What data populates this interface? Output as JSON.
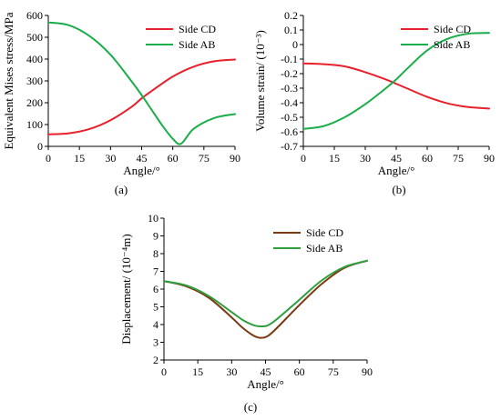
{
  "chart_data": [
    {
      "type": "line",
      "caption": "(a)",
      "xlabel": "Angle/°",
      "ylabel": "Equivalent Mises stress/MPa",
      "xlim": [
        0,
        90
      ],
      "ylim": [
        0,
        600
      ],
      "xticks": [
        0,
        15,
        30,
        45,
        60,
        75,
        90
      ],
      "yticks": [
        0,
        100,
        200,
        300,
        400,
        500,
        600
      ],
      "legend_position": "top-right",
      "series": [
        {
          "name": "Side CD",
          "color": "#e8202a",
          "x": [
            0,
            10,
            20,
            30,
            40,
            45,
            50,
            60,
            70,
            80,
            90
          ],
          "y": [
            55,
            60,
            80,
            120,
            180,
            220,
            255,
            320,
            365,
            390,
            398
          ]
        },
        {
          "name": "Side AB",
          "color": "#1aae4a",
          "x": [
            0,
            10,
            20,
            30,
            40,
            45,
            50,
            55,
            60,
            64,
            70,
            80,
            90
          ],
          "y": [
            568,
            555,
            505,
            420,
            300,
            235,
            165,
            95,
            35,
            12,
            80,
            130,
            148
          ]
        }
      ]
    },
    {
      "type": "line",
      "caption": "(b)",
      "xlabel": "Angle/°",
      "ylabel": "Volume strain/ (10⁻³)",
      "xlim": [
        0,
        90
      ],
      "ylim": [
        -0.7,
        0.2
      ],
      "xticks": [
        0,
        15,
        30,
        45,
        60,
        75,
        90
      ],
      "yticks": [
        -0.7,
        -0.6,
        -0.5,
        -0.4,
        -0.3,
        -0.2,
        -0.1,
        0,
        0.1,
        0.2
      ],
      "yticklabels": [
        "-0.7",
        "-0.6",
        "-0.5",
        "-0.4",
        "-0.3",
        "-0.2",
        "-0.1",
        "0",
        "0.1",
        "0.2"
      ],
      "legend_position": "top-right",
      "series": [
        {
          "name": "Side CD",
          "color": "#e8202a",
          "x": [
            0,
            10,
            20,
            30,
            40,
            45,
            50,
            60,
            70,
            80,
            90
          ],
          "y": [
            -0.13,
            -0.135,
            -0.15,
            -0.19,
            -0.24,
            -0.27,
            -0.3,
            -0.36,
            -0.405,
            -0.43,
            -0.44
          ]
        },
        {
          "name": "Side AB",
          "color": "#1aae4a",
          "x": [
            0,
            10,
            20,
            30,
            40,
            45,
            50,
            60,
            70,
            80,
            90
          ],
          "y": [
            -0.58,
            -0.56,
            -0.5,
            -0.41,
            -0.3,
            -0.24,
            -0.17,
            -0.04,
            0.04,
            0.075,
            0.08
          ]
        }
      ]
    },
    {
      "type": "line",
      "caption": "(c)",
      "xlabel": "Angle/°",
      "ylabel": "Displacement/ (10⁻⁴m)",
      "xlim": [
        0,
        90
      ],
      "ylim": [
        2,
        10
      ],
      "xticks": [
        0,
        15,
        30,
        45,
        60,
        75,
        90
      ],
      "yticks": [
        2,
        3,
        4,
        5,
        6,
        7,
        8,
        9,
        10
      ],
      "legend_position": "top-right",
      "series": [
        {
          "name": "Side CD",
          "color": "#7a3a10",
          "x": [
            0,
            10,
            20,
            30,
            35,
            40,
            43,
            46,
            50,
            60,
            70,
            80,
            90
          ],
          "y": [
            6.45,
            6.15,
            5.5,
            4.4,
            3.8,
            3.35,
            3.25,
            3.35,
            3.8,
            5.1,
            6.3,
            7.2,
            7.6
          ]
        },
        {
          "name": "Side AB",
          "color": "#2e9e3e",
          "x": [
            0,
            10,
            20,
            30,
            35,
            40,
            43,
            46,
            50,
            60,
            70,
            80,
            90
          ],
          "y": [
            6.45,
            6.2,
            5.6,
            4.7,
            4.25,
            3.95,
            3.9,
            3.95,
            4.3,
            5.4,
            6.5,
            7.25,
            7.6
          ]
        }
      ]
    }
  ]
}
